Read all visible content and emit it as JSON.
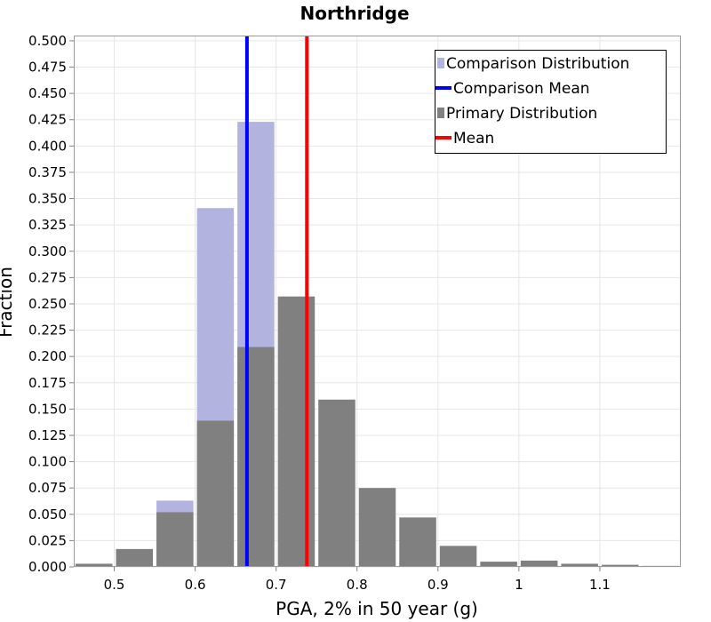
{
  "chart_data": {
    "type": "bar",
    "title": "Northridge",
    "xlabel": "PGA, 2% in 50 year (g)",
    "ylabel": "Fraction",
    "xlim": [
      0.45,
      1.2
    ],
    "ylim": [
      0,
      0.505
    ],
    "bin_width": 0.05,
    "x_ticks": [
      "0.5",
      "0.6",
      "0.7",
      "0.8",
      "0.9",
      "1",
      "1.1"
    ],
    "x_tick_values": [
      0.5,
      0.6,
      0.7,
      0.8,
      0.9,
      1.0,
      1.1
    ],
    "y_ticks": [
      "0.000",
      "0.025",
      "0.050",
      "0.075",
      "0.100",
      "0.125",
      "0.150",
      "0.175",
      "0.200",
      "0.225",
      "0.250",
      "0.275",
      "0.300",
      "0.325",
      "0.350",
      "0.375",
      "0.400",
      "0.425",
      "0.450",
      "0.475",
      "0.500"
    ],
    "y_tick_values": [
      0,
      0.025,
      0.05,
      0.075,
      0.1,
      0.125,
      0.15,
      0.175,
      0.2,
      0.225,
      0.25,
      0.275,
      0.3,
      0.325,
      0.35,
      0.375,
      0.4,
      0.425,
      0.45,
      0.475,
      0.5
    ],
    "series": [
      {
        "name": "Comparison Distribution",
        "color": "#b3b3e0",
        "bins": [
          0.575,
          0.625,
          0.675
        ],
        "values": [
          0.063,
          0.341,
          0.423
        ]
      },
      {
        "name": "Primary Distribution",
        "color": "#808080",
        "bins": [
          0.475,
          0.525,
          0.575,
          0.625,
          0.675,
          0.725,
          0.775,
          0.825,
          0.875,
          0.925,
          0.975,
          1.025,
          1.075,
          1.125,
          1.175
        ],
        "values": [
          0.003,
          0.017,
          0.052,
          0.139,
          0.209,
          0.257,
          0.159,
          0.075,
          0.047,
          0.02,
          0.005,
          0.006,
          0.003,
          0.002,
          0.001
        ]
      }
    ],
    "lines": [
      {
        "name": "Comparison Mean",
        "x": 0.664,
        "color": "#0000ff"
      },
      {
        "name": "Mean",
        "x": 0.738,
        "color": "#ff0000"
      }
    ],
    "legend": [
      {
        "label": "Comparison Distribution",
        "kind": "box",
        "color": "#b3b3e0"
      },
      {
        "label": "Comparison Mean",
        "kind": "line",
        "color": "#0000ff"
      },
      {
        "label": "Primary Distribution",
        "kind": "box",
        "color": "#808080"
      },
      {
        "label": "Mean",
        "kind": "line",
        "color": "#ff0000"
      }
    ],
    "legend_position": "top-right",
    "grid": true
  }
}
